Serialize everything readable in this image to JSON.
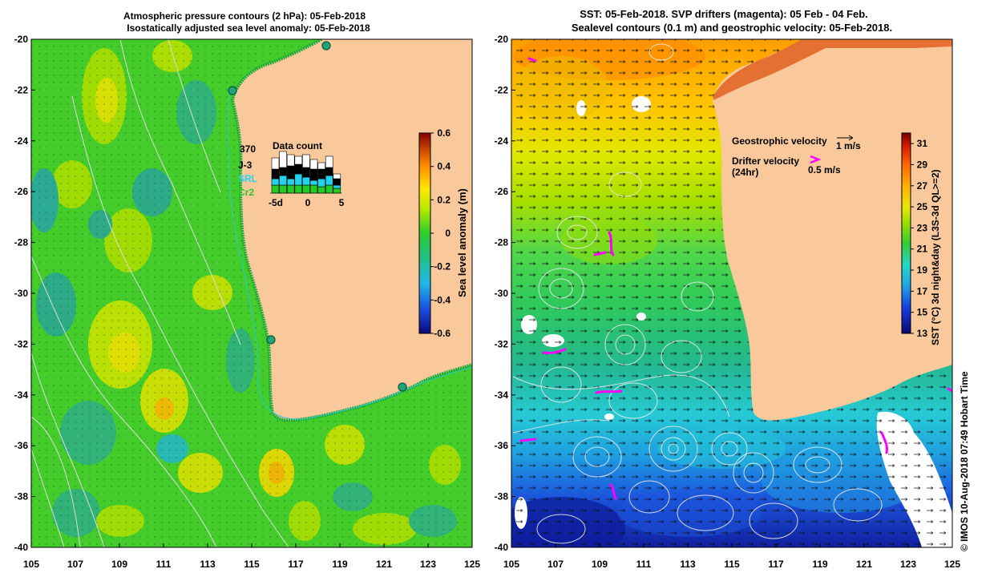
{
  "left_map": {
    "title_line1": "Atmospheric pressure contours (2 hPa): 05-Feb-2018",
    "title_line2": "Isostatically adjusted sea level anomaly: 05-Feb-2018",
    "lat_ticks": [
      "-20",
      "-22",
      "-24",
      "-26",
      "-28",
      "-30",
      "-32",
      "-34",
      "-36",
      "-38",
      "-40"
    ],
    "lon_ticks": [
      "105",
      "107",
      "109",
      "111",
      "113",
      "115",
      "117",
      "119",
      "121",
      "123",
      "125"
    ],
    "data_count": {
      "total": "370",
      "title": "Data count",
      "legend": [
        {
          "label": "J-3",
          "color": "#000000"
        },
        {
          "label": "SRL",
          "color": "#22d3ee"
        },
        {
          "label": "Cr2",
          "color": "#22cc22"
        }
      ],
      "x_ticks": [
        "-5d",
        "0",
        "5"
      ]
    },
    "colorbar": {
      "label": "Sea level anomaly (m)",
      "ticks": [
        "0.6",
        "0.4",
        "0.2",
        "0",
        "-0.2",
        "-0.4",
        "-0.6"
      ],
      "range": [
        -0.6,
        0.6
      ]
    }
  },
  "right_map": {
    "title_line1": "SST: 05-Feb-2018. SVP drifters (magenta): 05 Feb - 04 Feb.",
    "title_line2": "Sealevel contours (0.1 m) and geostrophic velocity: 05-Feb-2018.",
    "lat_ticks": [
      "-20",
      "-22",
      "-24",
      "-26",
      "-28",
      "-30",
      "-32",
      "-34",
      "-36",
      "-38",
      "-40"
    ],
    "lon_ticks": [
      "105",
      "107",
      "109",
      "111",
      "113",
      "115",
      "117",
      "119",
      "121",
      "123",
      "125"
    ],
    "geostrophic_label": "Geostrophic velocity",
    "geostrophic_scale": "1 m/s",
    "drifter_label_line1": "Drifter velocity",
    "drifter_label_line2": "(24hr)",
    "drifter_scale": "0.5 m/s",
    "colorbar": {
      "label": "SST (°C) 3d night&day (L3S-3d QL>=2)",
      "ticks": [
        "31",
        "29",
        "27",
        "25",
        "23",
        "21",
        "19",
        "17",
        "15",
        "13"
      ],
      "range": [
        13,
        32
      ]
    }
  },
  "credit": "© IMOS 10-Aug-2018 07:49 Hobart Time",
  "colors": {
    "land": "#f9c89b",
    "coast_sla": "#1aaa3a",
    "drifter": "#ff00ff"
  }
}
